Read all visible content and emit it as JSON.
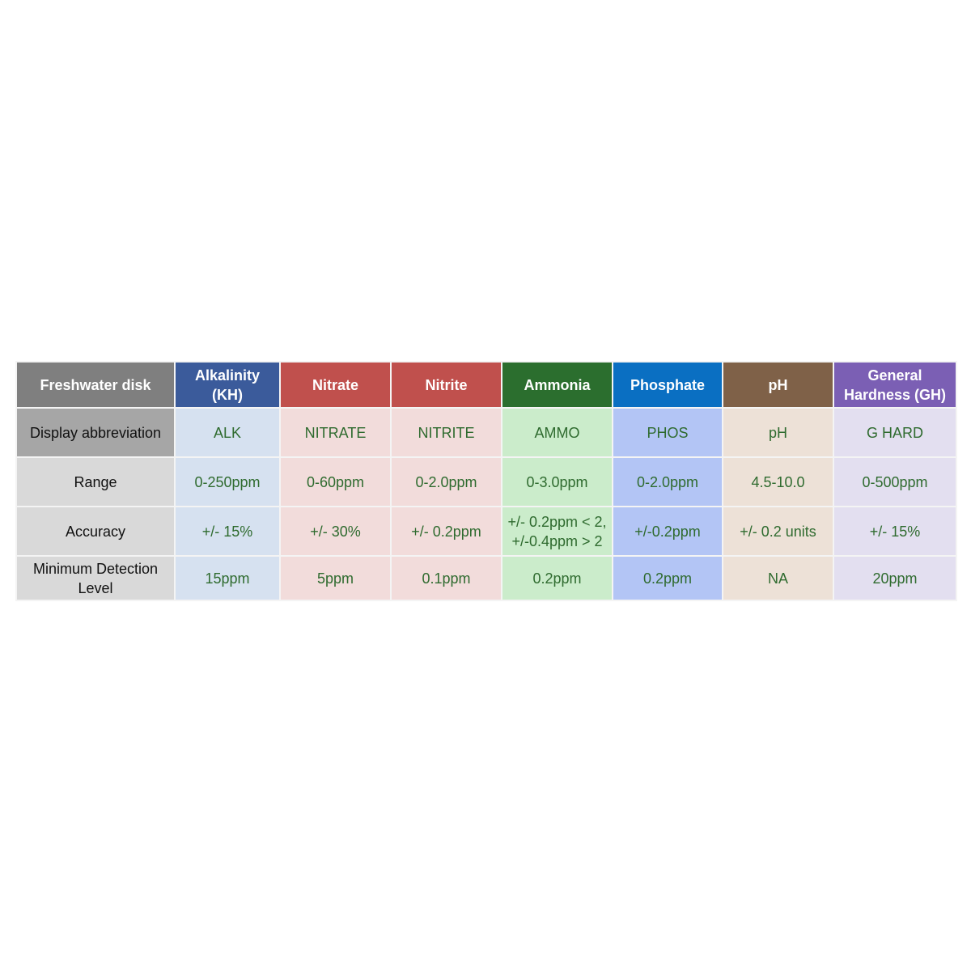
{
  "table": {
    "header": [
      "Freshwater disk",
      "Alkalinity (KH)",
      "Nitrate",
      "Nitrite",
      "Ammonia",
      "Phosphate",
      "pH",
      "General Hardness (GH)"
    ],
    "rows": [
      [
        "Display abbreviation",
        "ALK",
        "NITRATE",
        "NITRITE",
        "AMMO",
        "PHOS",
        "pH",
        "G HARD"
      ],
      [
        "Range",
        "0-250ppm",
        "0-60ppm",
        "0-2.0ppm",
        "0-3.0ppm",
        "0-2.0ppm",
        "4.5-10.0",
        "0-500ppm"
      ],
      [
        "Accuracy",
        "+/- 15%",
        "+/- 30%",
        "+/- 0.2ppm",
        "+/- 0.2ppm < 2, +/-0.4ppm > 2",
        "+/-0.2ppm",
        "+/- 0.2 units",
        "+/- 15%"
      ],
      [
        "Minimum Detection Level",
        "15ppm",
        "5ppm",
        "0.1ppm",
        "0.2ppm",
        "0.2ppm",
        "NA",
        "20ppm"
      ]
    ]
  }
}
